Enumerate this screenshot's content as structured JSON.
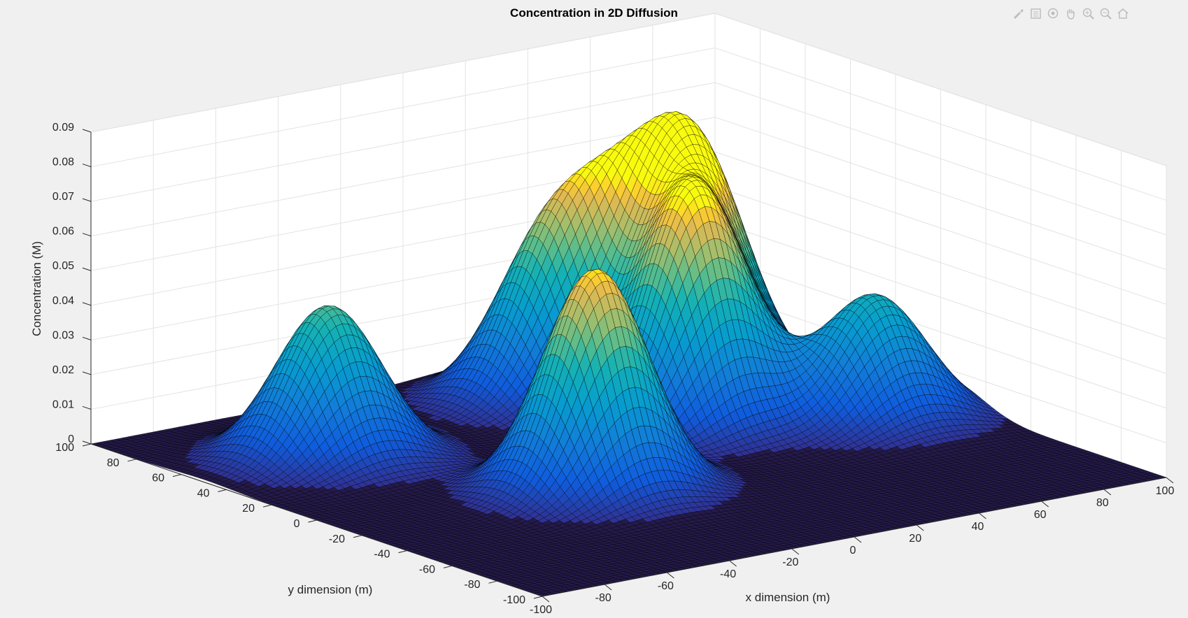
{
  "toolbar": {
    "icons": [
      "brush-icon",
      "insert-legend-icon",
      "rotate-3d-icon",
      "pan-icon",
      "zoom-in-icon",
      "zoom-out-icon",
      "home-icon"
    ]
  },
  "chart_data": {
    "type": "surface",
    "title": "Concentration in 2D Diffusion",
    "xlabel": "x dimension (m)",
    "ylabel": "y dimension (m)",
    "zlabel": "Concentration (M)",
    "xlim": [
      -100,
      100
    ],
    "ylim": [
      -100,
      100
    ],
    "zlim": [
      0,
      0.09
    ],
    "x_ticks": [
      "-100",
      "-80",
      "-60",
      "-40",
      "-20",
      "0",
      "20",
      "40",
      "60",
      "80",
      "100"
    ],
    "y_ticks": [
      "-100",
      "-80",
      "-60",
      "-40",
      "-20",
      "0",
      "20",
      "40",
      "60",
      "80",
      "100"
    ],
    "z_ticks": [
      "0",
      "0.01",
      "0.02",
      "0.03",
      "0.04",
      "0.05",
      "0.06",
      "0.07",
      "0.08",
      "0.09"
    ],
    "grid": true,
    "colormap": "parula",
    "mesh_edge_color": "#000000",
    "peaks": [
      {
        "x": -25,
        "y": -20,
        "z": 0.064
      },
      {
        "x": 35,
        "y": 20,
        "z": 0.063
      },
      {
        "x": 55,
        "y": 45,
        "z": 0.06
      },
      {
        "x": -60,
        "y": 50,
        "z": 0.044
      },
      {
        "x": 20,
        "y": 65,
        "z": 0.041
      },
      {
        "x": 40,
        "y": 60,
        "z": 0.037
      },
      {
        "x": 75,
        "y": -5,
        "z": 0.036
      }
    ]
  }
}
